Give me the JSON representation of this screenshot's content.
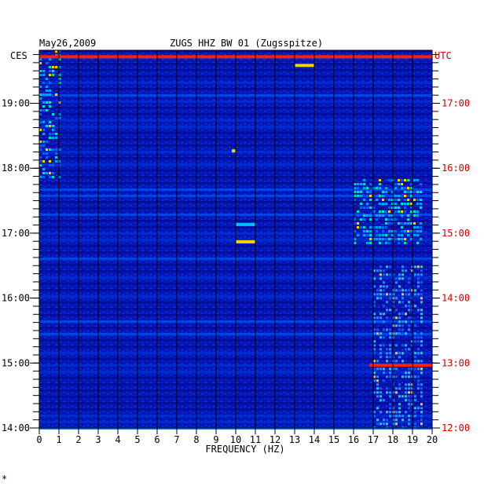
{
  "chart_data": {
    "type": "heatmap",
    "date": "May26,2009",
    "station": "ZUGS HHZ BW 01 (Zugsspitze)",
    "left_timezone": "CES",
    "right_timezone": "UTC",
    "xlabel": "FREQUENCY (HZ)",
    "xlim": [
      0,
      20
    ],
    "x_ticks": [
      "0",
      "1",
      "2",
      "3",
      "4",
      "5",
      "6",
      "7",
      "8",
      "9",
      "10",
      "11",
      "12",
      "13",
      "14",
      "15",
      "16",
      "17",
      "18",
      "19",
      "20"
    ],
    "left_time_labels": [
      "14:00",
      "15:00",
      "16:00",
      "17:00",
      "18:00",
      "19:00"
    ],
    "right_time_labels": [
      "12:00",
      "13:00",
      "14:00",
      "15:00",
      "16:00",
      "17:00"
    ],
    "time_range_ces": [
      "14:00",
      "19:49"
    ],
    "colors": {
      "background": "#0010b0",
      "low": "#0000a0",
      "mid": "#0060ff",
      "high": "#00c0ff",
      "peak": "#ffd000",
      "max": "#ff2000"
    },
    "bright_bands": [
      {
        "time_ces": "19:43",
        "freq": [
          0,
          20
        ],
        "level": "max"
      },
      {
        "time_ces": "14:58",
        "freq": [
          16.8,
          20
        ],
        "level": "max"
      },
      {
        "time_ces": "19:35",
        "freq": [
          13,
          14
        ],
        "level": "peak"
      },
      {
        "time_ces": "16:52",
        "freq": [
          10,
          11
        ],
        "level": "peak"
      },
      {
        "time_ces": "17:08",
        "freq": [
          10,
          11
        ],
        "level": "high"
      },
      {
        "time_ces": "18:16",
        "freq": [
          9.8,
          10
        ],
        "level": "peak"
      }
    ],
    "activity_regions": [
      {
        "time_ces": [
          "14:00",
          "16:30"
        ],
        "freq": [
          17,
          19.5
        ],
        "level": "high"
      },
      {
        "time_ces": [
          "16:50",
          "17:50"
        ],
        "freq": [
          16,
          19.5
        ],
        "level": "high"
      },
      {
        "time_ces": [
          "17:50",
          "19:49"
        ],
        "freq": [
          0,
          1
        ],
        "level": "high"
      }
    ],
    "footer_mark": "*"
  }
}
